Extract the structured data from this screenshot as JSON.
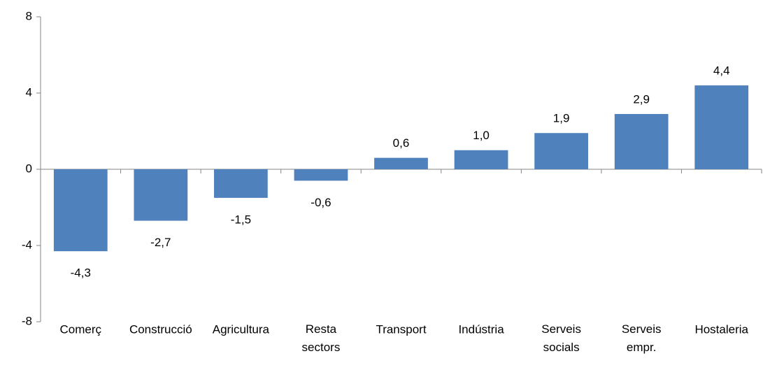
{
  "chart_data": {
    "type": "bar",
    "categories": [
      "Comerç",
      "Construcció",
      "Agricultura",
      "Resta sectors",
      "Transport",
      "Indústria",
      "Serveis socials",
      "Serveis empr.",
      "Hostaleria"
    ],
    "values": [
      -4.3,
      -2.7,
      -1.5,
      -0.6,
      0.6,
      1.0,
      1.9,
      2.9,
      4.4
    ],
    "value_labels": [
      "-4,3",
      "-2,7",
      "-1,5",
      "-0,6",
      "0,6",
      "1,0",
      "1,9",
      "2,9",
      "4,4"
    ],
    "color": "#4f81bd",
    "ylim": [
      -8,
      8
    ],
    "yticks": [
      -8,
      -4,
      0,
      4,
      8
    ],
    "grid": false
  }
}
